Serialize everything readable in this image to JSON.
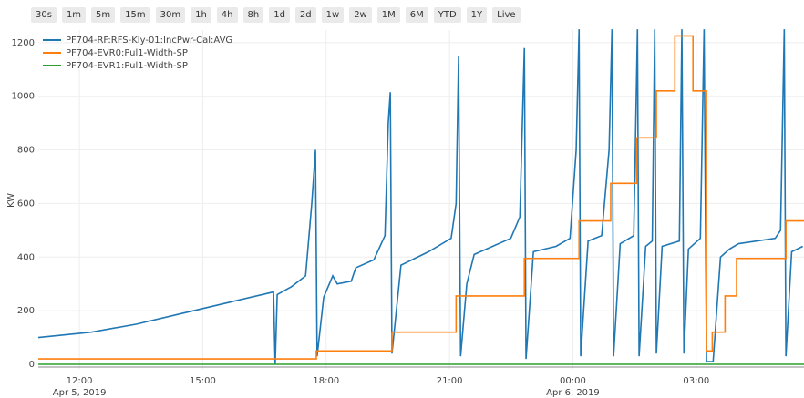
{
  "buttons": [
    "30s",
    "1m",
    "5m",
    "15m",
    "30m",
    "1h",
    "4h",
    "8h",
    "1d",
    "2d",
    "1w",
    "2w",
    "1M",
    "6M",
    "YTD",
    "1Y",
    "Live"
  ],
  "chart_data": {
    "type": "line",
    "ylabel": "KW",
    "xlim": [
      11,
      29.62
    ],
    "ylim": [
      -17,
      1247
    ],
    "xticks": [
      {
        "value": 12,
        "label": "12:00"
      },
      {
        "value": 15,
        "label": "15:00"
      },
      {
        "value": 18,
        "label": "18:00"
      },
      {
        "value": 21,
        "label": "21:00"
      },
      {
        "value": 24,
        "label": "00:00"
      },
      {
        "value": 27,
        "label": "03:00"
      }
    ],
    "xtick_sublabels": [
      {
        "value": 12,
        "label": "Apr 5, 2019"
      },
      {
        "value": 24,
        "label": "Apr 6, 2019"
      }
    ],
    "yticks": [
      0,
      200,
      400,
      600,
      800,
      1000,
      1200
    ],
    "grid": true,
    "legend": "top-left",
    "series": [
      {
        "name": "PF704-RF:RFS-Kly-01:IncPwr-Cal:AVG",
        "color": "#1f77b4",
        "line_shape": "linear",
        "x": [
          11.0,
          12.29,
          13.39,
          14.5,
          15.61,
          16.72,
          16.76,
          16.81,
          17.16,
          17.5,
          17.65,
          17.74,
          17.78,
          17.94,
          18.16,
          18.27,
          18.61,
          18.72,
          19.16,
          19.43,
          19.51,
          19.56,
          19.6,
          19.82,
          20.49,
          21.04,
          21.16,
          21.22,
          21.27,
          21.42,
          21.6,
          22.49,
          22.71,
          22.82,
          22.86,
          23.04,
          23.59,
          23.93,
          24.08,
          24.15,
          24.19,
          24.37,
          24.7,
          24.88,
          24.95,
          24.99,
          25.15,
          25.48,
          25.57,
          25.61,
          25.77,
          25.93,
          25.99,
          26.03,
          26.17,
          26.59,
          26.65,
          26.7,
          26.81,
          27.1,
          27.19,
          27.25,
          27.41,
          27.59,
          27.81,
          28.03,
          28.92,
          29.05,
          29.14,
          29.18,
          29.32,
          29.59
        ],
        "values": [
          100,
          120,
          150,
          190,
          230,
          270,
          0,
          260,
          290,
          330,
          600,
          800,
          30,
          250,
          330,
          300,
          310,
          360,
          390,
          480,
          900,
          1015,
          40,
          370,
          420,
          470,
          600,
          1150,
          30,
          300,
          410,
          470,
          550,
          1180,
          20,
          420,
          440,
          470,
          800,
          1250,
          30,
          460,
          480,
          800,
          1250,
          30,
          450,
          480,
          1250,
          30,
          440,
          460,
          1250,
          40,
          440,
          460,
          1250,
          40,
          430,
          470,
          1250,
          10,
          10,
          400,
          430,
          450,
          470,
          500,
          1250,
          30,
          420,
          440
        ]
      },
      {
        "name": "PF704-EVR0:Pul1-Width-SP",
        "color": "#ff7f0e",
        "line_shape": "hv",
        "x": [
          11.0,
          17.76,
          19.6,
          21.16,
          22.82,
          24.15,
          24.92,
          25.55,
          26.03,
          26.48,
          26.92,
          27.25,
          27.39,
          27.7,
          27.98,
          29.18,
          29.62
        ],
        "values": [
          20,
          50,
          120,
          255,
          395,
          535,
          675,
          845,
          1020,
          1225,
          1020,
          50,
          120,
          255,
          395,
          535,
          535
        ]
      },
      {
        "name": "PF704-EVR1:Pul1-Width-SP",
        "color": "#2ca02c",
        "line_shape": "linear",
        "x": [
          11.0,
          29.62
        ],
        "values": [
          0,
          0
        ]
      }
    ]
  }
}
